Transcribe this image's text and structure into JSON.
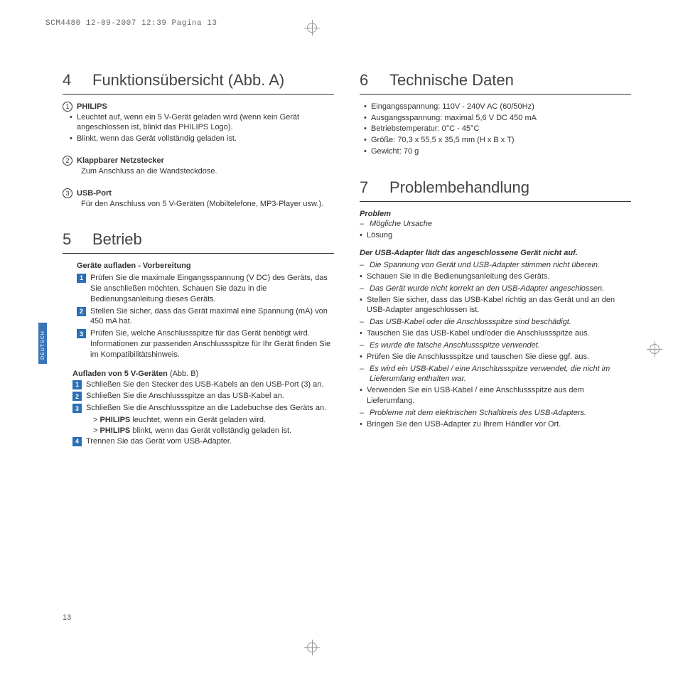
{
  "header": "SCM4480  12-09-2007  12:39  Pagina 13",
  "langTab": "DEUTSCH",
  "pageNumber": "13",
  "colors": {
    "accent": "#2b6fb5",
    "rule": "#333333"
  },
  "left": {
    "s4": {
      "num": "4",
      "title": "Funktionsübersicht (Abb. A)",
      "items": [
        {
          "mark": "1",
          "title": "PHILIPS",
          "bullets": [
            "Leuchtet auf, wenn ein 5 V-Gerät geladen wird (wenn kein Gerät angeschlossen ist, blinkt das PHILIPS Logo).",
            "Blinkt, wenn das Gerät vollständig geladen ist."
          ]
        },
        {
          "mark": "2",
          "title": "Klappbarer Netzstecker",
          "text": "Zum Anschluss an die Wandsteckdose."
        },
        {
          "mark": "3",
          "title": "USB-Port",
          "text": "Für den Anschluss von 5 V-Geräten (Mobiltelefone, MP3-Player usw.)."
        }
      ]
    },
    "s5": {
      "num": "5",
      "title": "Betrieb",
      "blockA": {
        "head": "Geräte aufladen - Vorbereitung",
        "steps": [
          "Prüfen Sie die maximale Eingangsspannung (V DC) des Geräts, das Sie anschließen möchten. Schauen Sie dazu in die Bedienungsanleitung dieses Geräts.",
          "Stellen Sie sicher, dass das Gerät maximal eine Spannung (mA) von 450 mA hat.",
          "Prüfen Sie, welche Anschlussspitze für das Gerät benötigt wird. Informationen zur passenden Anschlussspitze für Ihr Gerät finden Sie im Kompatibilitätshinweis."
        ]
      },
      "blockB": {
        "head_bold": "Aufladen von 5 V-Geräten",
        "head_rest": " (Abb. B)",
        "steps": [
          "Schließen Sie den Stecker des USB-Kabels an den USB-Port (3) an.",
          "Schließen Sie die Anschlussspitze an das USB-Kabel an.",
          "Schließen Sie die Anschlussspitze an die Ladebuchse des Geräts an."
        ],
        "gt1_pre": "> ",
        "gt1_bold": "PHILIPS",
        "gt1_post": " leuchtet, wenn ein Gerät geladen wird.",
        "gt2_pre": "> ",
        "gt2_bold": "PHILIPS",
        "gt2_post": " blinkt, wenn das Gerät vollständig geladen ist.",
        "step4": "Trennen Sie das Gerät vom USB-Adapter."
      }
    }
  },
  "right": {
    "s6": {
      "num": "6",
      "title": "Technische Daten",
      "bullets": [
        "Eingangsspannung: 110V - 240V AC (60/50Hz)",
        "Ausgangsspannung: maximal 5,6 V DC 450 mA",
        "Betriebstemperatur: 0°C - 45°C",
        "Größe: 70,3 x 55,5 x 35,5 mm (H x B x T)",
        "Gewicht: 70 g"
      ]
    },
    "s7": {
      "num": "7",
      "title": "Problembehandlung",
      "legend": {
        "problem": "Problem",
        "cause": "Mögliche Ursache",
        "solution": "Lösung"
      },
      "probTitle": "Der USB-Adapter lädt das angeschlossene Gerät nicht auf.",
      "pairs": [
        {
          "cause": "Die Spannung von Gerät und USB-Adapter stimmen nicht überein.",
          "sol": "Schauen Sie in die Bedienungsanleitung des Geräts."
        },
        {
          "cause": "Das Gerät wurde nicht korrekt an den USB-Adapter angeschlossen.",
          "sol": "Stellen Sie sicher, dass das USB-Kabel richtig an das Gerät und an den USB-Adapter angeschlossen ist."
        },
        {
          "cause": "Das USB-Kabel oder die Anschlussspitze sind beschädigt.",
          "sol": "Tauschen Sie das USB-Kabel und/oder die Anschlussspitze aus."
        },
        {
          "cause": "Es wurde die falsche Anschlussspitze verwendet.",
          "sol": "Prüfen Sie die Anschlussspitze und tauschen Sie diese ggf. aus."
        },
        {
          "cause": "Es wird ein USB-Kabel / eine Anschlussspitze verwendet, die nicht im Lieferumfang enthalten war.",
          "sol": "Verwenden Sie ein USB-Kabel / eine Anschlussspitze aus dem Lieferumfang."
        },
        {
          "cause": "Probleme mit dem elektrischen Schaltkreis des USB-Adapters.",
          "sol": "Bringen Sie den USB-Adapter zu Ihrem Händler vor Ort."
        }
      ]
    }
  }
}
